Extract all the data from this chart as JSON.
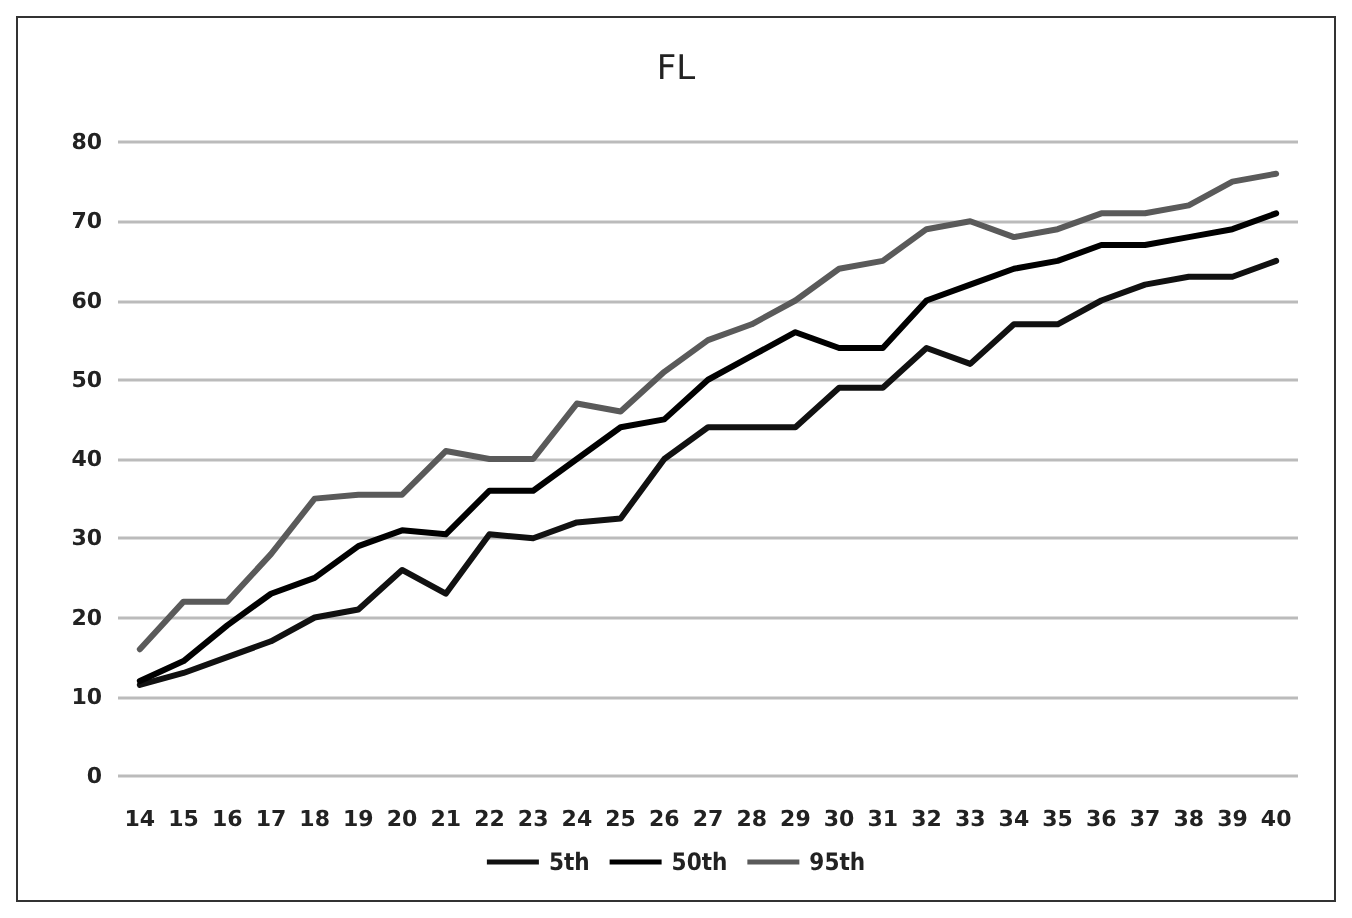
{
  "chart_data": {
    "type": "line",
    "title": "FL",
    "categories": [
      "14",
      "15",
      "16",
      "17",
      "18",
      "19",
      "20",
      "21",
      "22",
      "23",
      "24",
      "25",
      "26",
      "27",
      "28",
      "29",
      "30",
      "31",
      "32",
      "33",
      "34",
      "35",
      "36",
      "37",
      "38",
      "39",
      "40"
    ],
    "series": [
      {
        "name": "5th",
        "color": "#111111",
        "values": [
          11.5,
          13,
          15,
          17,
          20,
          21,
          26,
          23,
          30.5,
          30,
          32,
          32.5,
          40,
          44,
          44,
          44,
          49,
          49,
          54,
          52,
          57,
          57,
          60,
          62,
          63,
          63,
          65
        ]
      },
      {
        "name": "50th",
        "color": "#000000",
        "values": [
          12,
          14.5,
          19,
          23,
          25,
          29,
          31,
          30.5,
          36,
          36,
          40,
          44,
          45,
          50,
          53,
          56,
          54,
          54,
          60,
          62,
          64,
          65,
          67,
          67,
          68,
          69,
          71
        ]
      },
      {
        "name": "95th",
        "color": "#5a5a5a",
        "values": [
          16,
          22,
          22,
          28,
          35,
          35.5,
          35.5,
          41,
          40,
          40,
          47,
          46,
          51,
          55,
          57,
          60,
          64,
          65,
          69,
          70,
          68,
          69,
          71,
          71,
          72,
          75,
          76
        ]
      }
    ],
    "ylim": [
      0,
      80
    ],
    "yticks": [
      0,
      10,
      20,
      30,
      40,
      50,
      60,
      70,
      80
    ],
    "grid": "y",
    "legend": "bottom",
    "marker": "none",
    "line_style": "solid"
  }
}
